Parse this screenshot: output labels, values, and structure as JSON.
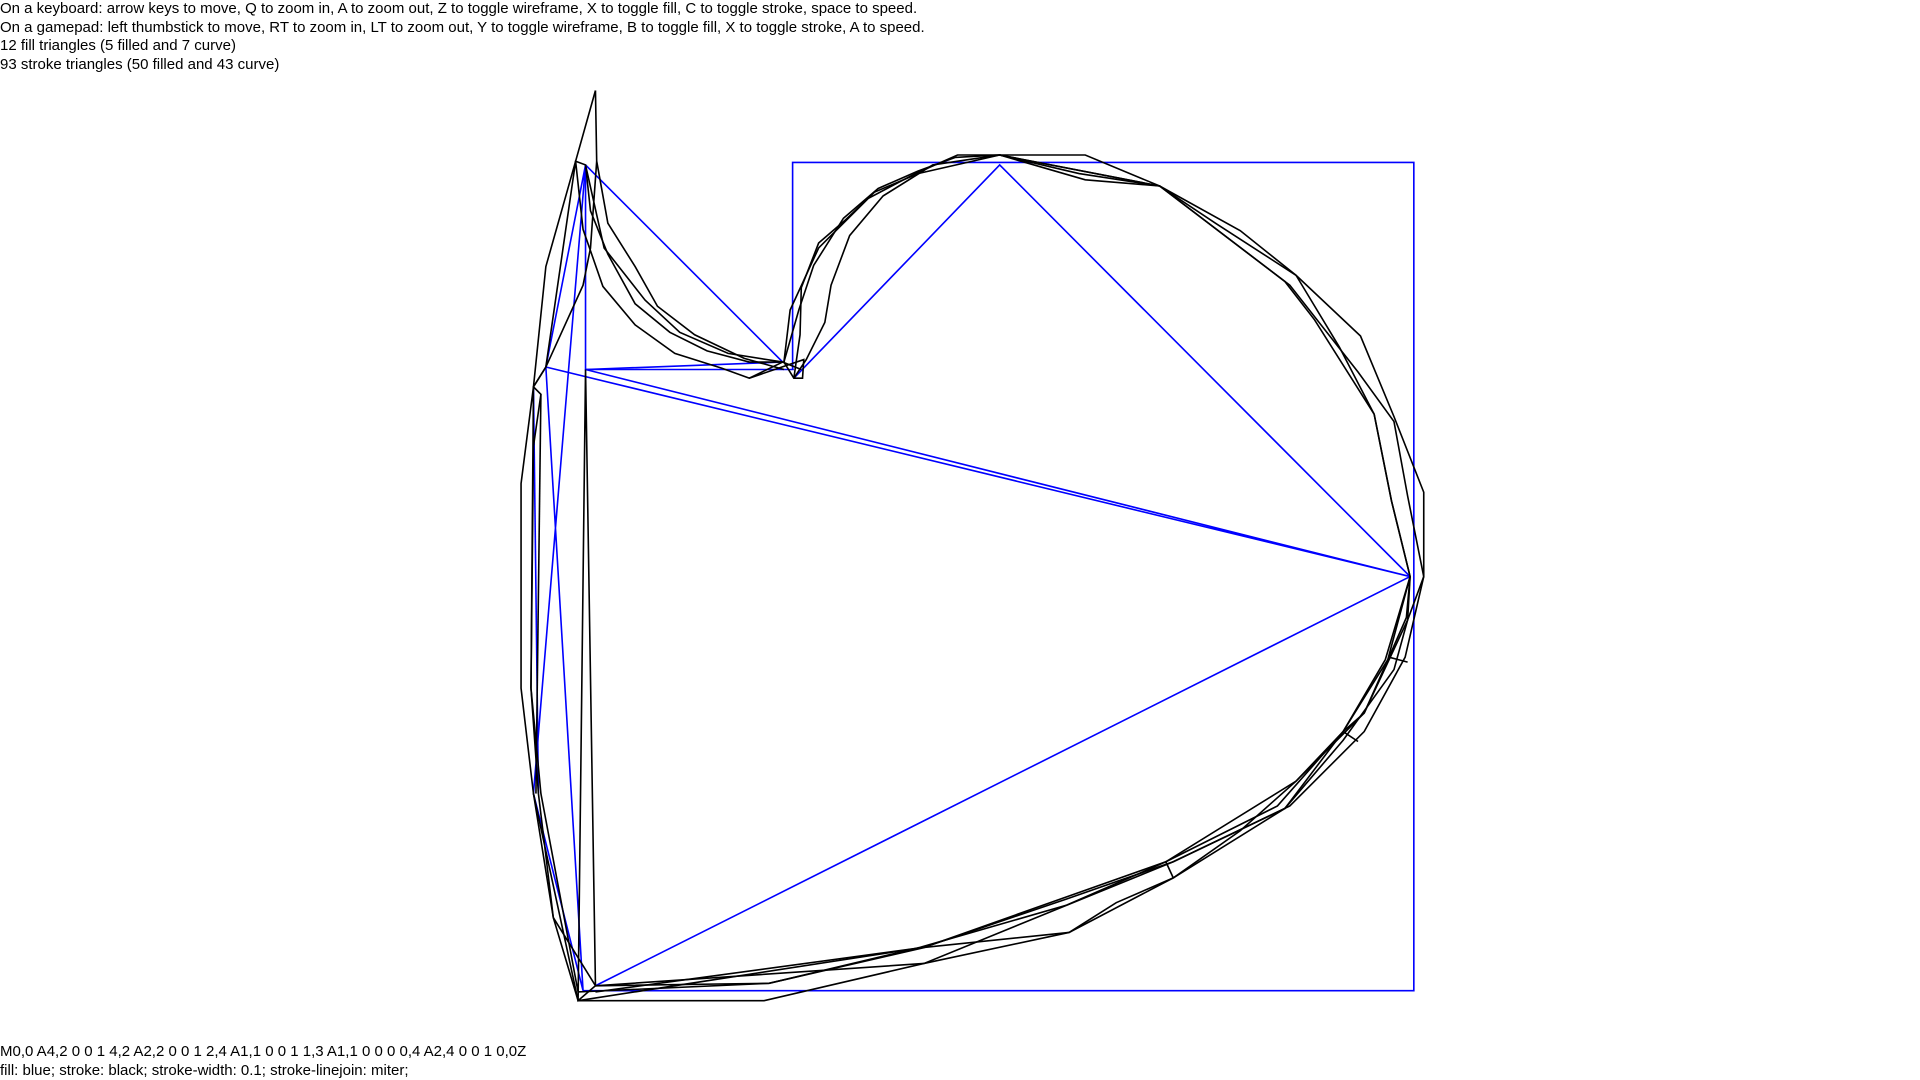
{
  "header": {
    "lines": [
      "On a keyboard: arrow keys to move, Q to zoom in, A to zoom out, Z to toggle wireframe, X to toggle fill, C to toggle stroke, space to speed.",
      "On a gamepad: left thumbstick to move, RT to zoom in, LT to zoom out, Y to toggle wireframe, B to toggle fill, X to toggle stroke, A to speed.",
      "12 fill triangles (5 filled and 7 curve)",
      "93 stroke triangles (50 filled and 43 curve)"
    ]
  },
  "footer": {
    "lines": [
      "M0,0 A4,2 0 0 1 4,2 A2,2 0 0 1 2,4 A1,1 0 0 1 1,3 A1,1 0 0 0 0,4 A2,4 0 0 1 0,0Z",
      "fill: blue; stroke: black; stroke-width: 0.1; stroke-linejoin: miter;"
    ]
  }
}
